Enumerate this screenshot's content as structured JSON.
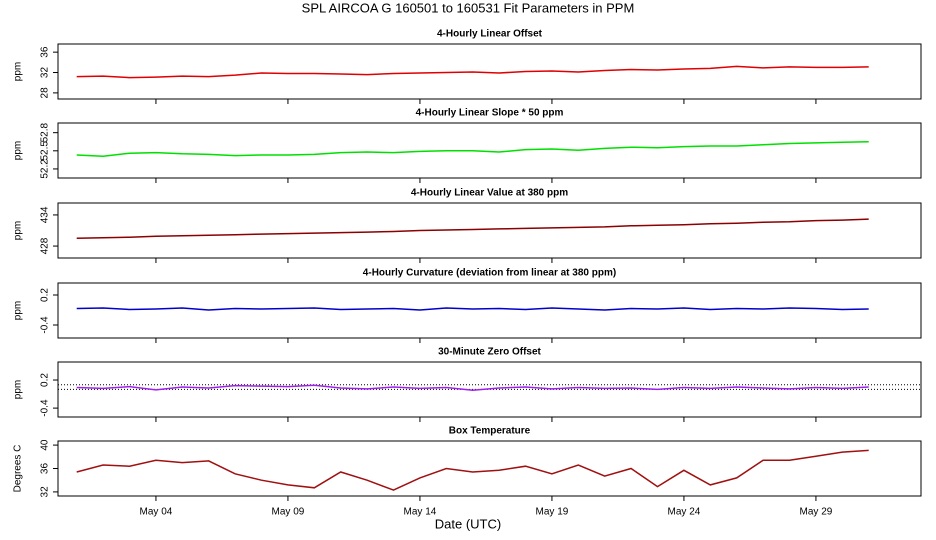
{
  "title": "SPL   AIRCOA G   160501 to 160531   Fit Parameters in PPM",
  "x_label": "Date (UTC)",
  "chart_data": [
    {
      "type": "line",
      "title": "4-Hourly Linear Offset",
      "ylabel": "ppm",
      "color": "#e00000",
      "x": [
        1,
        2,
        3,
        4,
        5,
        6,
        7,
        8,
        9,
        10,
        11,
        12,
        13,
        14,
        15,
        16,
        17,
        18,
        19,
        20,
        21,
        22,
        23,
        24,
        25,
        26,
        27,
        28,
        29,
        30,
        31
      ],
      "values": [
        31.2,
        31.3,
        31.0,
        31.1,
        31.3,
        31.2,
        31.5,
        31.9,
        31.8,
        31.8,
        31.7,
        31.6,
        31.8,
        31.9,
        32.0,
        32.1,
        31.9,
        32.2,
        32.3,
        32.1,
        32.4,
        32.6,
        32.5,
        32.7,
        32.8,
        33.2,
        32.9,
        33.1,
        33.0,
        33.0,
        33.1
      ],
      "xlim": [
        0.29,
        32.98
      ],
      "xticks": [
        4,
        9,
        14,
        19,
        24,
        29
      ],
      "ylim": [
        26.8,
        37.6
      ],
      "yticks": [
        28,
        32,
        36
      ]
    },
    {
      "type": "line",
      "title": "4-Hourly Linear Slope * 50 ppm",
      "ylabel": "ppm",
      "color": "#00e000",
      "x": [
        1,
        2,
        3,
        4,
        5,
        6,
        7,
        8,
        9,
        10,
        11,
        12,
        13,
        14,
        15,
        16,
        17,
        18,
        19,
        20,
        21,
        22,
        23,
        24,
        25,
        26,
        27,
        28,
        29,
        30,
        31
      ],
      "values": [
        52.43,
        52.41,
        52.46,
        52.47,
        52.45,
        52.44,
        52.42,
        52.43,
        52.43,
        52.44,
        52.47,
        52.48,
        52.47,
        52.49,
        52.5,
        52.5,
        52.48,
        52.52,
        52.53,
        52.51,
        52.54,
        52.56,
        52.55,
        52.57,
        52.58,
        52.58,
        52.6,
        52.62,
        52.63,
        52.64,
        52.65
      ],
      "xlim": [
        0.29,
        32.98
      ],
      "xticks": [
        4,
        9,
        14,
        19,
        24,
        29
      ],
      "ylim": [
        52.05,
        52.96
      ],
      "yticks": [
        52.2,
        52.5,
        52.8
      ]
    },
    {
      "type": "line",
      "title": "4-Hourly Linear Value at 380 ppm",
      "ylabel": "ppm",
      "color": "#8b0000",
      "x": [
        1,
        2,
        3,
        4,
        5,
        6,
        7,
        8,
        9,
        10,
        11,
        12,
        13,
        14,
        15,
        16,
        17,
        18,
        19,
        20,
        21,
        22,
        23,
        24,
        25,
        26,
        27,
        28,
        29,
        30,
        31
      ],
      "values": [
        429.5,
        429.6,
        429.7,
        429.9,
        430.0,
        430.1,
        430.2,
        430.3,
        430.4,
        430.5,
        430.6,
        430.7,
        430.8,
        431.0,
        431.1,
        431.2,
        431.3,
        431.4,
        431.5,
        431.6,
        431.7,
        431.9,
        432.0,
        432.1,
        432.3,
        432.4,
        432.6,
        432.7,
        432.9,
        433.0,
        433.2
      ],
      "xlim": [
        0.29,
        32.98
      ],
      "xticks": [
        4,
        9,
        14,
        19,
        24,
        29
      ],
      "ylim": [
        425.7,
        436.3
      ],
      "yticks": [
        428,
        434
      ]
    },
    {
      "type": "line",
      "title": "4-Hourly Curvature (deviation from linear at 380 ppm)",
      "ylabel": "ppm",
      "color": "#0000cc",
      "x": [
        1,
        2,
        3,
        4,
        5,
        6,
        7,
        8,
        9,
        10,
        11,
        12,
        13,
        14,
        15,
        16,
        17,
        18,
        19,
        20,
        21,
        22,
        23,
        24,
        25,
        26,
        27,
        28,
        29,
        30,
        31
      ],
      "values": [
        -0.07,
        -0.06,
        -0.09,
        -0.08,
        -0.06,
        -0.1,
        -0.07,
        -0.08,
        -0.07,
        -0.06,
        -0.09,
        -0.08,
        -0.07,
        -0.1,
        -0.06,
        -0.08,
        -0.07,
        -0.09,
        -0.06,
        -0.08,
        -0.1,
        -0.07,
        -0.08,
        -0.06,
        -0.09,
        -0.07,
        -0.08,
        -0.06,
        -0.07,
        -0.09,
        -0.08
      ],
      "xlim": [
        0.29,
        32.98
      ],
      "xticks": [
        4,
        9,
        14,
        19,
        24,
        29
      ],
      "ylim": [
        -0.66,
        0.44
      ],
      "yticks": [
        0.2,
        -0.4
      ]
    },
    {
      "type": "line",
      "title": "30-Minute Zero Offset",
      "ylabel": "ppm",
      "color": "#a020f0",
      "x": [
        1,
        2,
        3,
        4,
        5,
        6,
        7,
        8,
        9,
        10,
        11,
        12,
        13,
        14,
        15,
        16,
        17,
        18,
        19,
        20,
        21,
        22,
        23,
        24,
        25,
        26,
        27,
        28,
        29,
        30,
        31
      ],
      "values": [
        0.04,
        0.02,
        0.06,
        -0.01,
        0.05,
        0.03,
        0.08,
        0.07,
        0.06,
        0.09,
        0.03,
        0.01,
        0.05,
        0.02,
        0.04,
        -0.02,
        0.03,
        0.05,
        0.01,
        0.04,
        0.02,
        0.03,
        0.0,
        0.04,
        0.02,
        0.05,
        0.03,
        0.01,
        0.04,
        0.02,
        0.05
      ],
      "xlim": [
        0.29,
        32.98
      ],
      "xticks": [
        4,
        9,
        14,
        19,
        24,
        29
      ],
      "ylim": [
        -0.59,
        0.585
      ],
      "yticks": [
        0.2,
        -0.4
      ],
      "hlines": [
        0.1,
        0
      ]
    },
    {
      "type": "line",
      "title": "Box Temperature",
      "ylabel": "Degrees C",
      "color": "#a01010",
      "x": [
        1,
        2,
        3,
        4,
        5,
        6,
        7,
        8,
        9,
        10,
        11,
        12,
        13,
        14,
        15,
        16,
        17,
        18,
        19,
        20,
        21,
        22,
        23,
        24,
        25,
        26,
        27,
        28,
        29,
        30,
        31
      ],
      "values": [
        35.4,
        36.6,
        36.4,
        37.4,
        37.0,
        37.3,
        35.1,
        34.0,
        33.2,
        32.7,
        35.4,
        34.0,
        32.3,
        34.4,
        36.0,
        35.4,
        35.7,
        36.4,
        35.1,
        36.6,
        34.7,
        36.0,
        32.9,
        35.7,
        33.2,
        34.4,
        37.4,
        37.4,
        38.1,
        38.8,
        39.1
      ],
      "xlim": [
        0.29,
        32.98
      ],
      "xticks": [
        {
          "value": 4,
          "label": "May 04"
        },
        {
          "value": 9,
          "label": "May 09"
        },
        {
          "value": 14,
          "label": "May 14"
        },
        {
          "value": 19,
          "label": "May 19"
        },
        {
          "value": 24,
          "label": "May 24"
        },
        {
          "value": 29,
          "label": "May 29"
        }
      ],
      "ylim": [
        31.3,
        40.7
      ],
      "yticks": [
        32,
        36,
        40
      ]
    }
  ]
}
